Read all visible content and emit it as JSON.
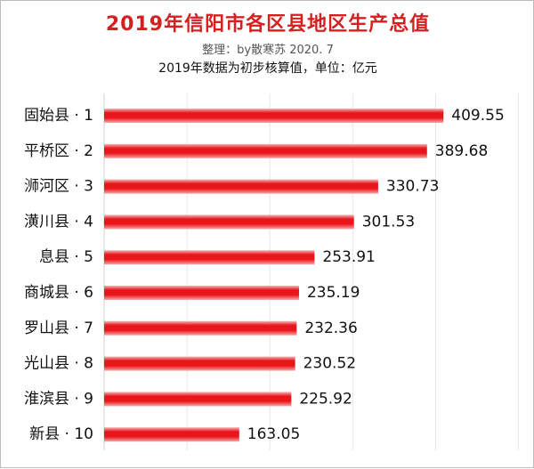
{
  "chart_data": {
    "type": "bar",
    "orientation": "horizontal",
    "title": "2019年信阳市各区县地区生产总值",
    "subtitle": "整理：by散寒苏  2020. 7",
    "note": "2019年数据为初步核算值，单位：亿元",
    "categories": [
      "固始县 · 1",
      "平桥区 · 2",
      "浉河区 · 3",
      "潢川县 · 4",
      "息县 · 5",
      "商城县 · 6",
      "罗山县 · 7",
      "光山县 · 8",
      "淮滨县 · 9",
      "新县 · 10"
    ],
    "values": [
      409.55,
      389.68,
      330.73,
      301.53,
      253.91,
      235.19,
      232.36,
      230.52,
      225.92,
      163.05
    ],
    "value_labels": [
      "409.55",
      "389.68",
      "330.73",
      "301.53",
      "253.91",
      "235.19",
      "232.36",
      "230.52",
      "225.92",
      "163.05"
    ],
    "xlim": [
      0,
      500
    ],
    "grid": true,
    "bar_color": "#e8161b"
  }
}
